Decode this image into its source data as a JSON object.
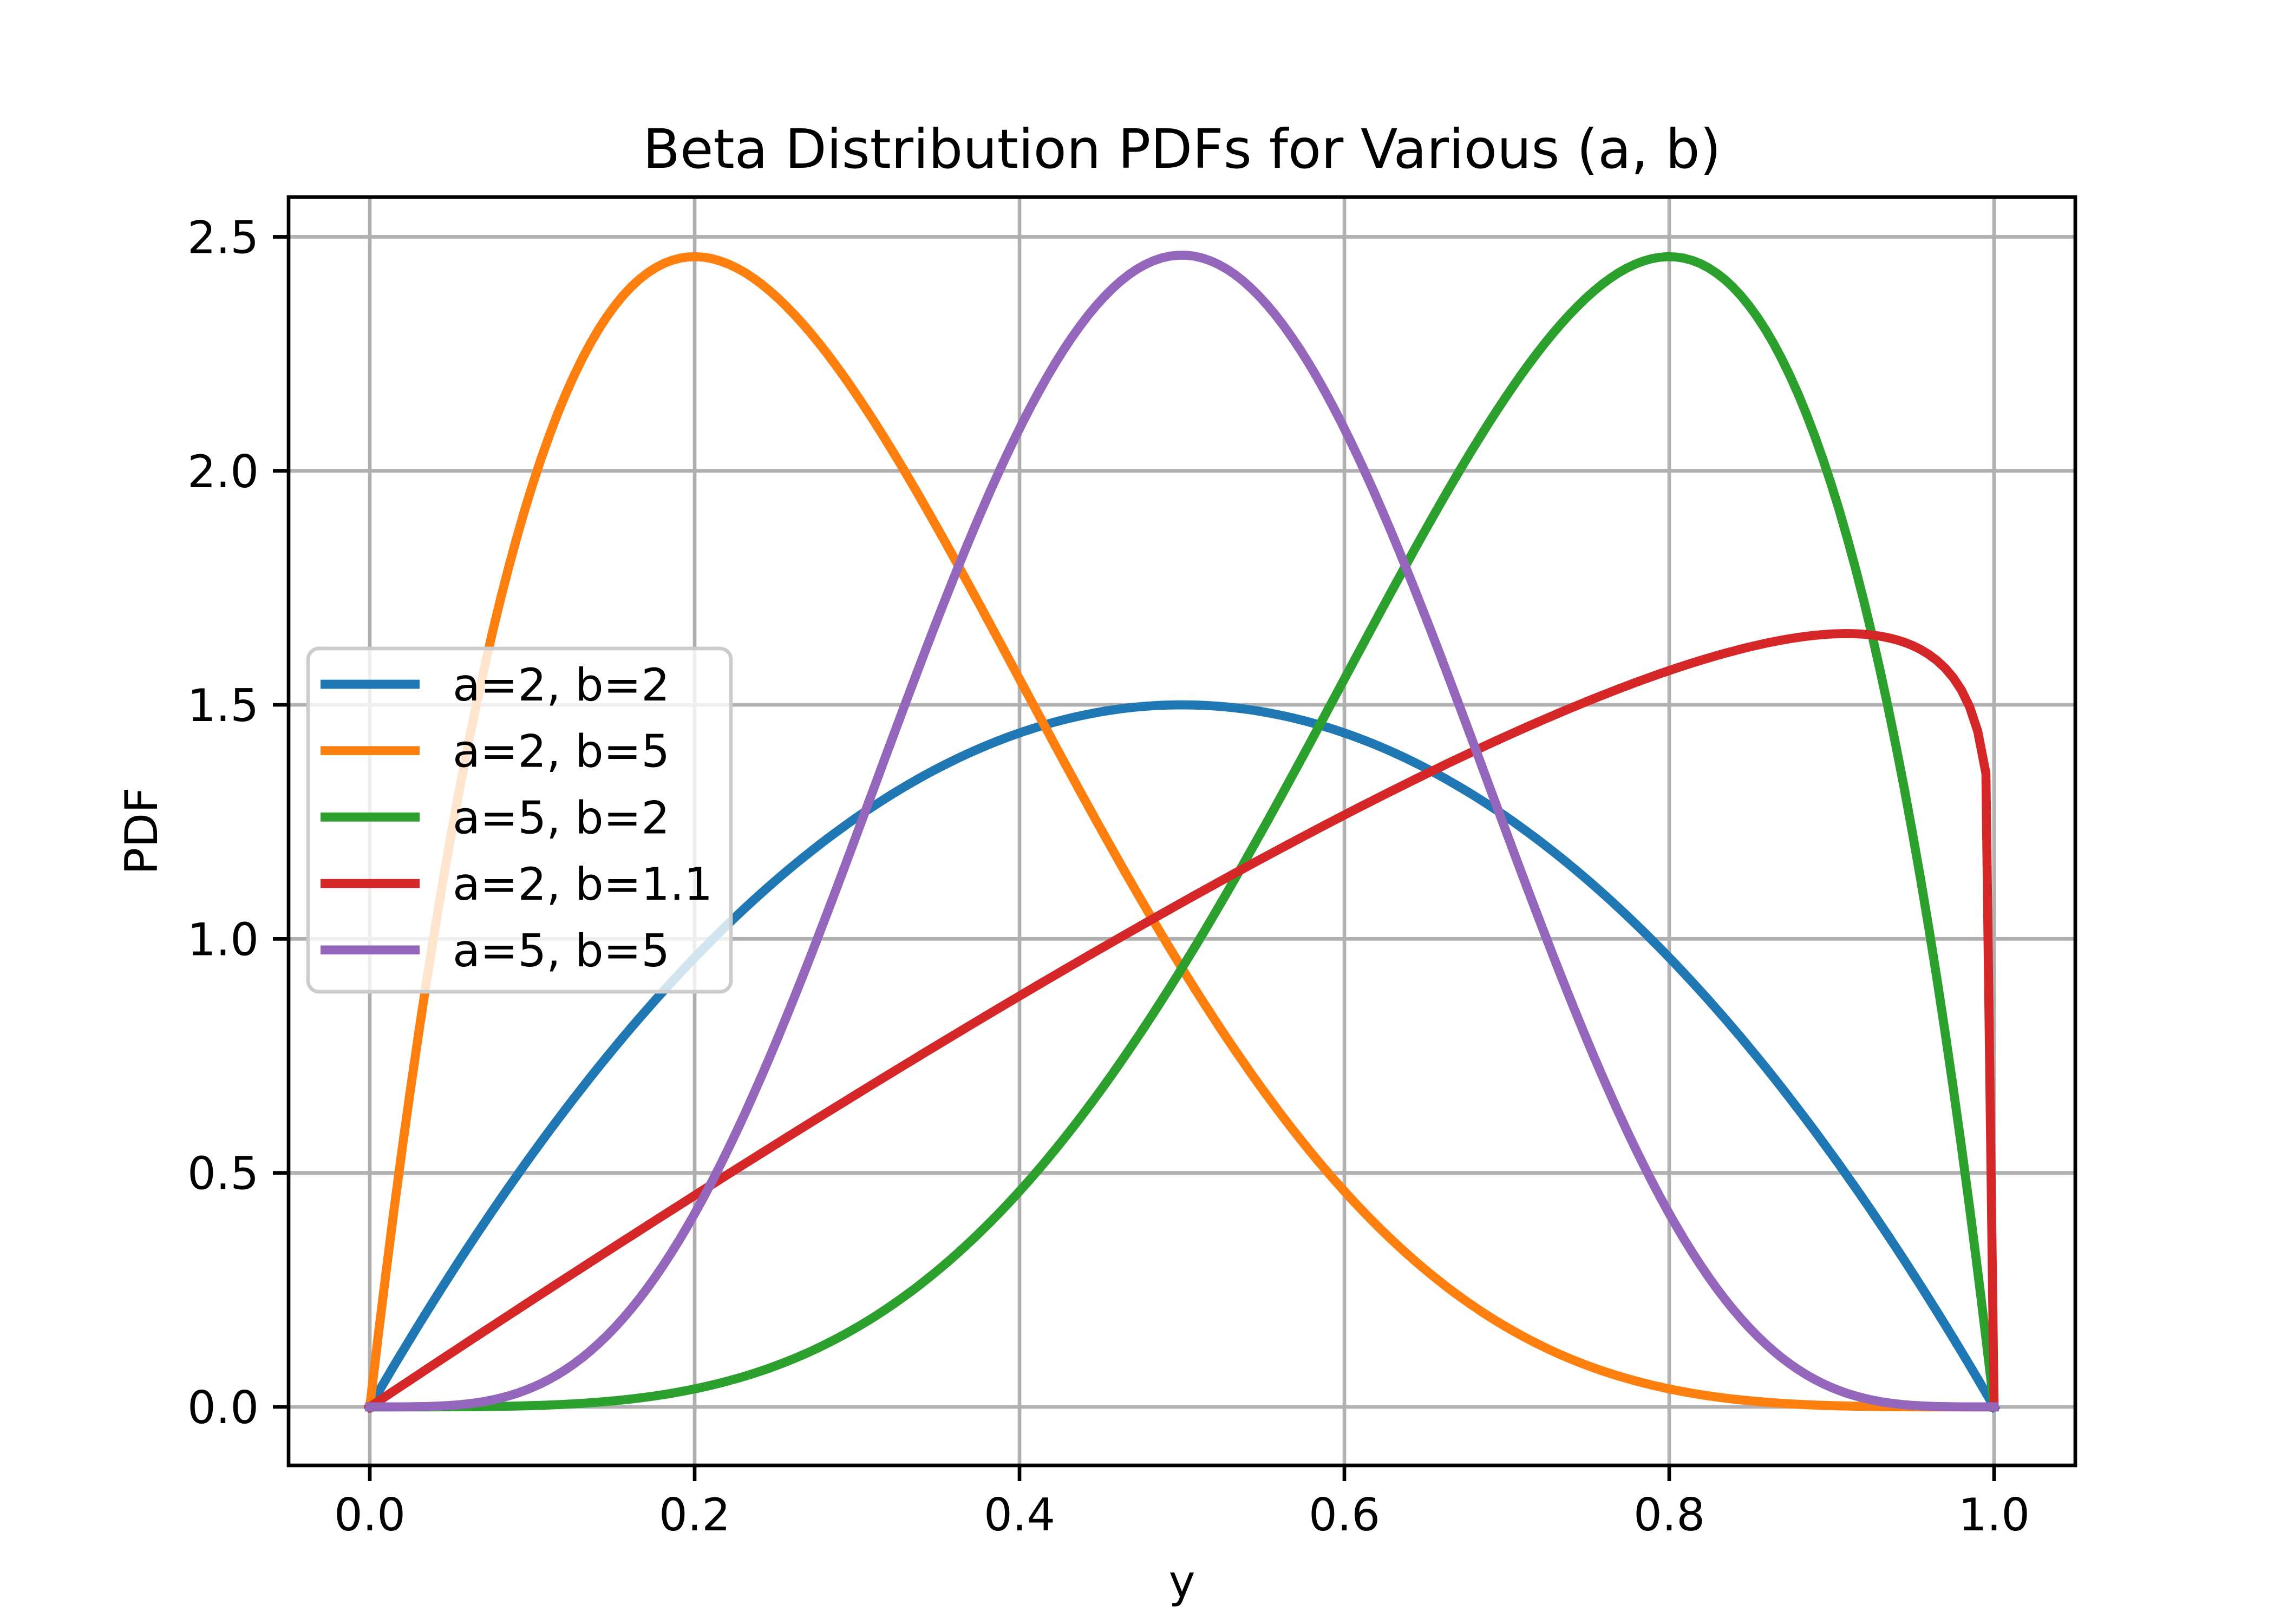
{
  "chart_data": {
    "type": "line",
    "title": "Beta Distribution PDFs for Various (a, b)",
    "xlabel": "y",
    "ylabel": "PDF",
    "xlim": [
      -0.05,
      1.05
    ],
    "ylim": [
      -0.125,
      2.585
    ],
    "xticks": [
      "0.0",
      "0.2",
      "0.4",
      "0.6",
      "0.8",
      "1.0"
    ],
    "yticks": [
      "0.0",
      "0.5",
      "1.0",
      "1.5",
      "2.0",
      "2.5"
    ],
    "grid": true,
    "legend_position": "center-left",
    "x_domain": [
      0,
      1
    ],
    "samples": 200,
    "series": [
      {
        "name": "a=2, b=2",
        "a": 2,
        "b": 2,
        "color": "#1f77b4"
      },
      {
        "name": "a=2, b=5",
        "a": 2,
        "b": 5,
        "color": "#ff7f0e"
      },
      {
        "name": "a=5, b=2",
        "a": 5,
        "b": 2,
        "color": "#2ca02c"
      },
      {
        "name": "a=2, b=1.1",
        "a": 2,
        "b": 1.1,
        "color": "#d62728"
      },
      {
        "name": "a=5, b=5",
        "a": 5,
        "b": 5,
        "color": "#9467bd"
      }
    ]
  }
}
